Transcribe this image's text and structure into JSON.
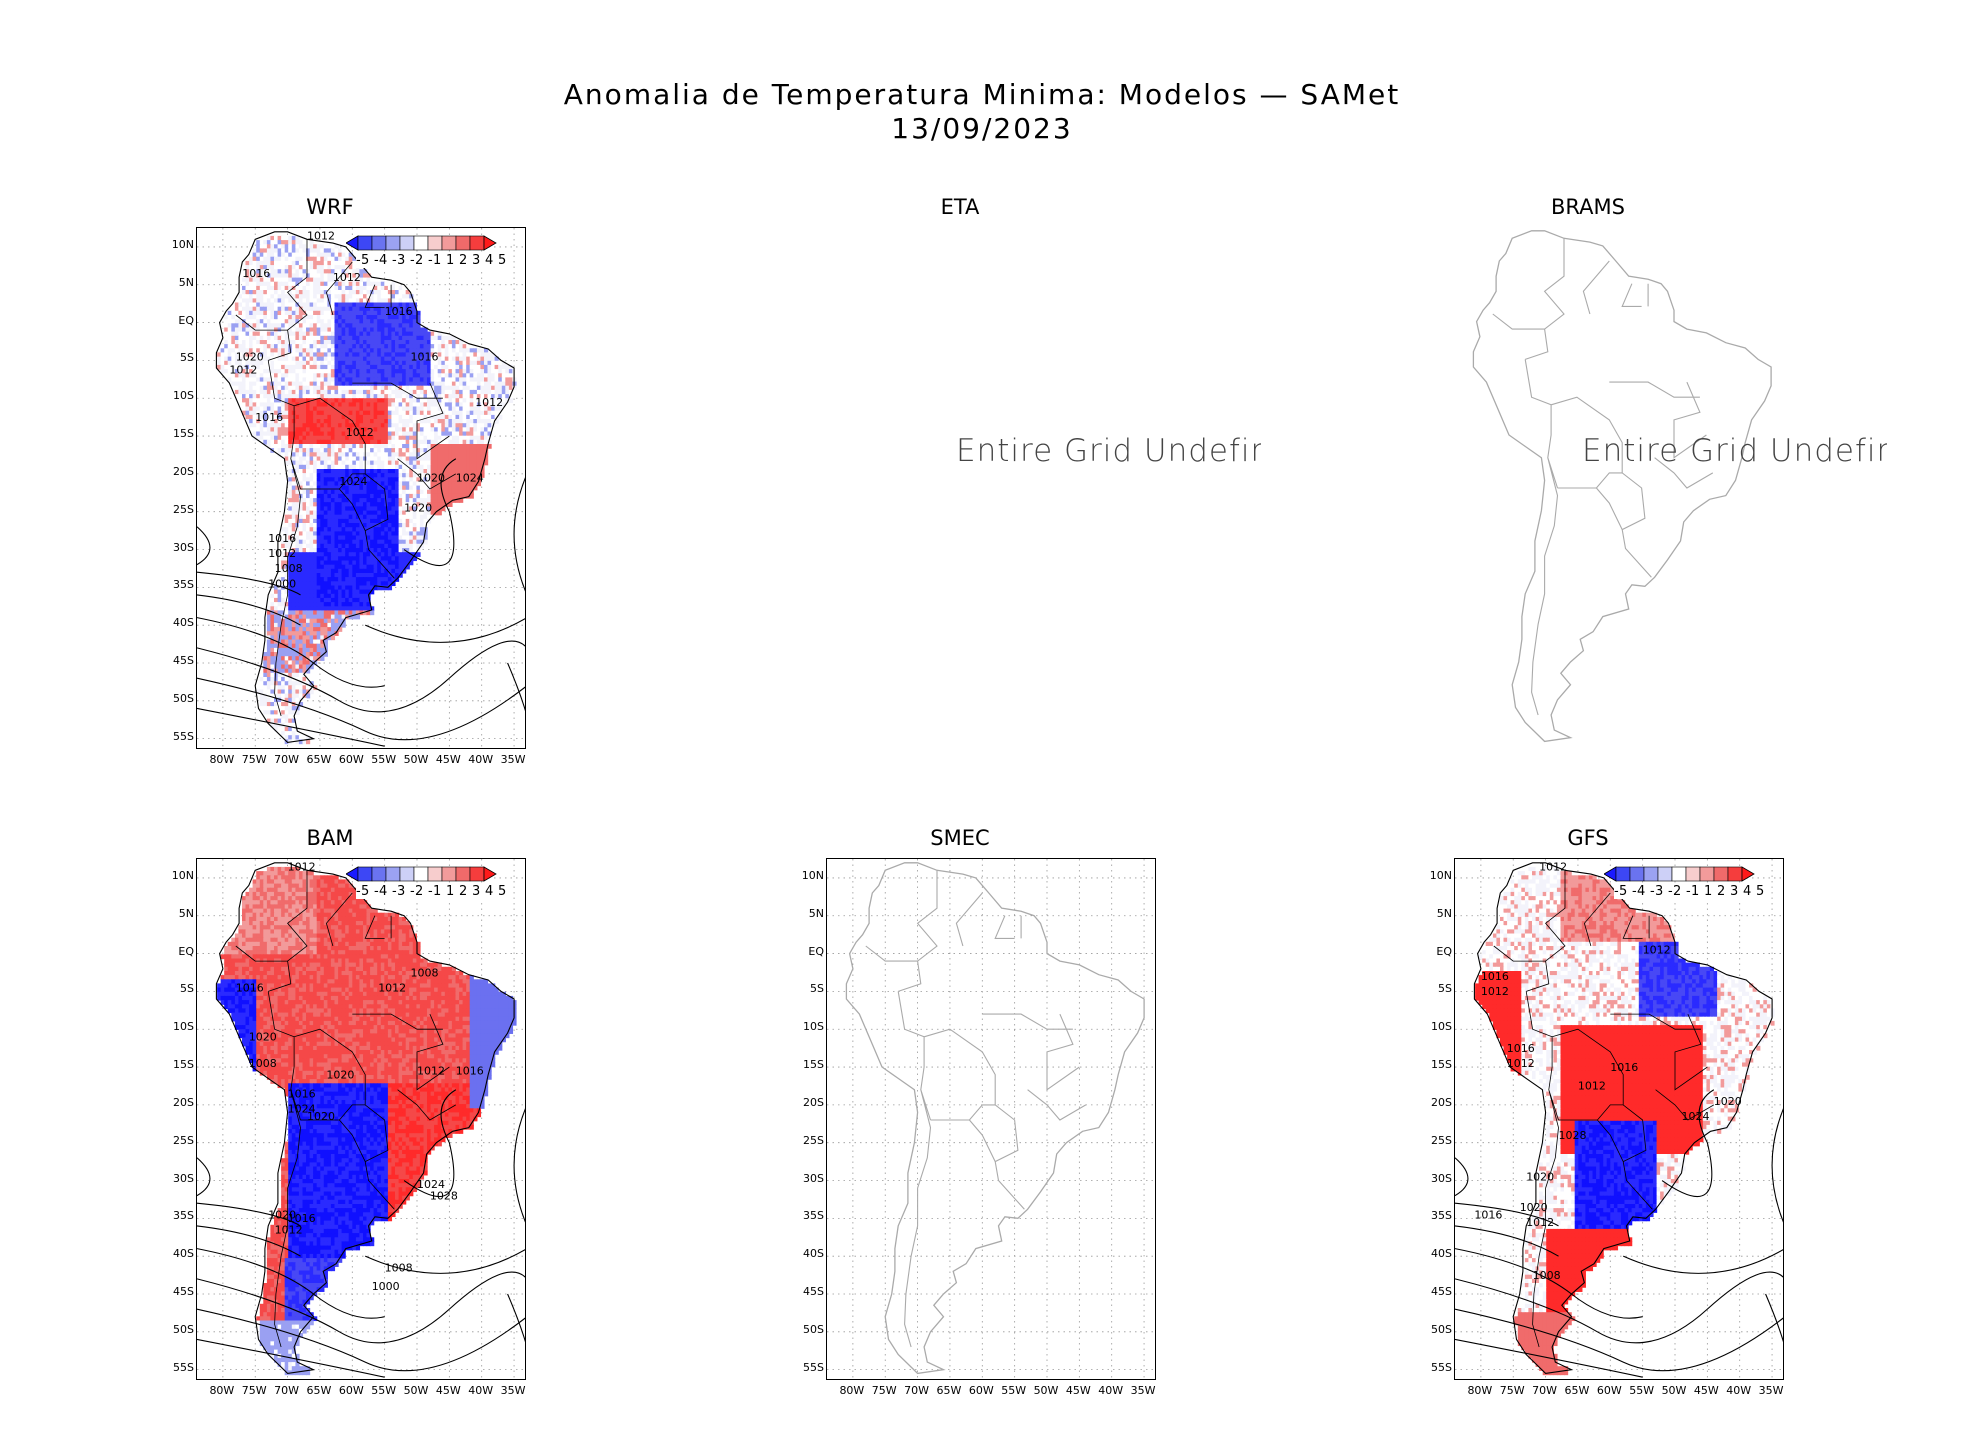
{
  "header": {
    "title": "Anomalia de Temperatura Minima: Modelos — SAMet",
    "date": "13/09/2023"
  },
  "axes": {
    "lat_labels": [
      "10N",
      "5N",
      "EQ",
      "5S",
      "10S",
      "15S",
      "20S",
      "25S",
      "30S",
      "35S",
      "40S",
      "45S",
      "50S",
      "55S"
    ],
    "lon_labels": [
      "80W",
      "75W",
      "70W",
      "65W",
      "60W",
      "55W",
      "50W",
      "45W",
      "40W",
      "35W"
    ]
  },
  "legend": {
    "labels": "-5 -4 -3 -2 -1 1 2 3 4 5",
    "colors": [
      "#1a1aff",
      "#3d47f5",
      "#6a73f0",
      "#9ba2f2",
      "#cdd0f7",
      "#ffffff",
      "#f7cdcd",
      "#f29b9b",
      "#f06a6a",
      "#f53d3d",
      "#ff1a1a"
    ]
  },
  "undefined_text": "Entire Grid Undefine",
  "panels": [
    {
      "id": "wrf",
      "title": "WRF",
      "status": "data",
      "pattern": "wrf",
      "isobars": [
        "1012",
        "1016",
        "1012",
        "1016",
        "1020",
        "1012",
        "1016",
        "1012",
        "1016",
        "1012",
        "1024",
        "1020",
        "1024",
        "1020",
        "1016",
        "1012",
        "1008",
        "1000"
      ]
    },
    {
      "id": "eta",
      "title": "ETA",
      "status": "undefined"
    },
    {
      "id": "brams",
      "title": "BRAMS",
      "status": "undefined-map"
    },
    {
      "id": "bam",
      "title": "BAM",
      "status": "data",
      "pattern": "bam",
      "isobars": [
        "1012",
        "1016",
        "1020",
        "1008",
        "1012",
        "1008",
        "1020",
        "1012",
        "1016",
        "1016",
        "1024",
        "1020",
        "1024",
        "1028",
        "1020",
        "1016",
        "1012",
        "1008",
        "1000"
      ]
    },
    {
      "id": "smec",
      "title": "SMEC",
      "status": "map"
    },
    {
      "id": "gfs",
      "title": "GFS",
      "status": "data",
      "pattern": "gfs",
      "isobars": [
        "1012",
        "1012",
        "1016",
        "1012",
        "1016",
        "1012",
        "1016",
        "1012",
        "1020",
        "1024",
        "1028",
        "1020",
        "1020",
        "1016",
        "1012",
        "1008"
      ]
    }
  ]
}
